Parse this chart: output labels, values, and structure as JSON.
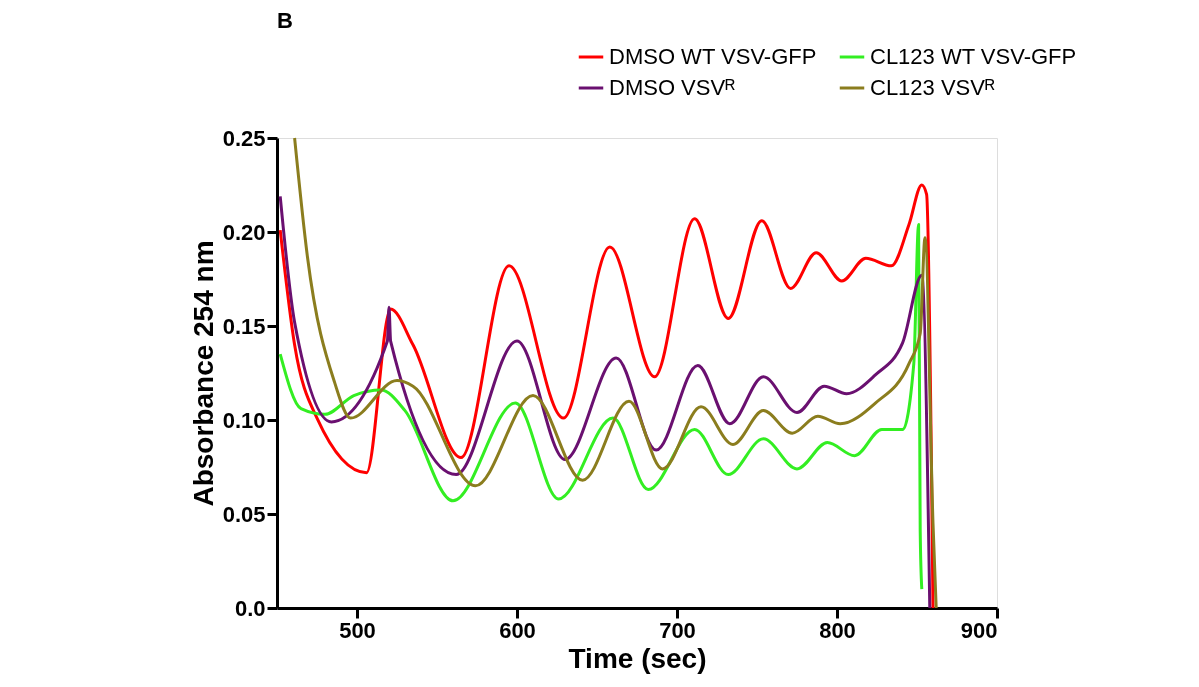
{
  "chart_data": {
    "type": "line",
    "title": "B",
    "xlabel": "Time (sec)",
    "ylabel": "Absorbance 254 nm",
    "xlim": [
      450,
      900
    ],
    "xticks": [
      500,
      600,
      700,
      800,
      900
    ],
    "ylim": [
      0,
      0.25
    ],
    "yticks": [
      {
        "value": 0,
        "label": "0.0"
      },
      0.05,
      {
        "value": 0.1,
        "label": "0.10"
      },
      0.15,
      {
        "value": 0.2,
        "label": "0.20"
      },
      0.25
    ],
    "grid": false,
    "legend": "top right",
    "marker": "none",
    "line_style": "solid",
    "series": [
      {
        "name": "DMSO WT VSV-GFP",
        "color": "#ff0000",
        "x": [
          452,
          461,
          475,
          506,
          521,
          535,
          565,
          595,
          629,
          658,
          686,
          711,
          732,
          753,
          771,
          787,
          803,
          818,
          834,
          845,
          853,
          856,
          860
        ],
        "values": [
          0.201,
          0.14,
          0.101,
          0.072,
          0.159,
          0.14,
          0.08,
          0.182,
          0.101,
          0.192,
          0.123,
          0.207,
          0.154,
          0.206,
          0.17,
          0.189,
          0.174,
          0.186,
          0.182,
          0.204,
          0.225,
          0.22,
          0.0
        ]
      },
      {
        "name": "CL123 WT VSV-GFP",
        "color": "#33ee22",
        "x": [
          452,
          465,
          480,
          498,
          515,
          530,
          560,
          599,
          626,
          660,
          682,
          711,
          732,
          754,
          775,
          794,
          811,
          828,
          841,
          848,
          851,
          852,
          853
        ],
        "values": [
          0.135,
          0.106,
          0.103,
          0.113,
          0.116,
          0.105,
          0.057,
          0.109,
          0.058,
          0.101,
          0.063,
          0.095,
          0.071,
          0.09,
          0.074,
          0.088,
          0.081,
          0.095,
          0.095,
          0.13,
          0.204,
          0.041,
          0.01
        ]
      },
      {
        "name": "DMSO VSVᴿ",
        "color": "#6a1070",
        "x": [
          452,
          461,
          484,
          519,
          520,
          521,
          562,
          600,
          630,
          662,
          687,
          713,
          733,
          754,
          775,
          792,
          806,
          824,
          841,
          853,
          858
        ],
        "values": [
          0.219,
          0.152,
          0.099,
          0.142,
          0.16,
          0.142,
          0.071,
          0.142,
          0.079,
          0.133,
          0.084,
          0.129,
          0.098,
          0.123,
          0.104,
          0.118,
          0.114,
          0.124,
          0.141,
          0.177,
          0.0
        ]
      },
      {
        "name": "CL123 VSVᴿ",
        "color": "#8b7d1e",
        "x": [
          461,
          469,
          486,
          496,
          525,
          535,
          574,
          610,
          641,
          670,
          691,
          715,
          735,
          754,
          772,
          788,
          802,
          824,
          845,
          852,
          855,
          860,
          862
        ],
        "values": [
          0.25,
          0.187,
          0.12,
          0.101,
          0.121,
          0.118,
          0.065,
          0.113,
          0.068,
          0.11,
          0.074,
          0.107,
          0.087,
          0.105,
          0.093,
          0.102,
          0.098,
          0.109,
          0.13,
          0.146,
          0.197,
          0.045,
          0.0
        ]
      }
    ]
  }
}
